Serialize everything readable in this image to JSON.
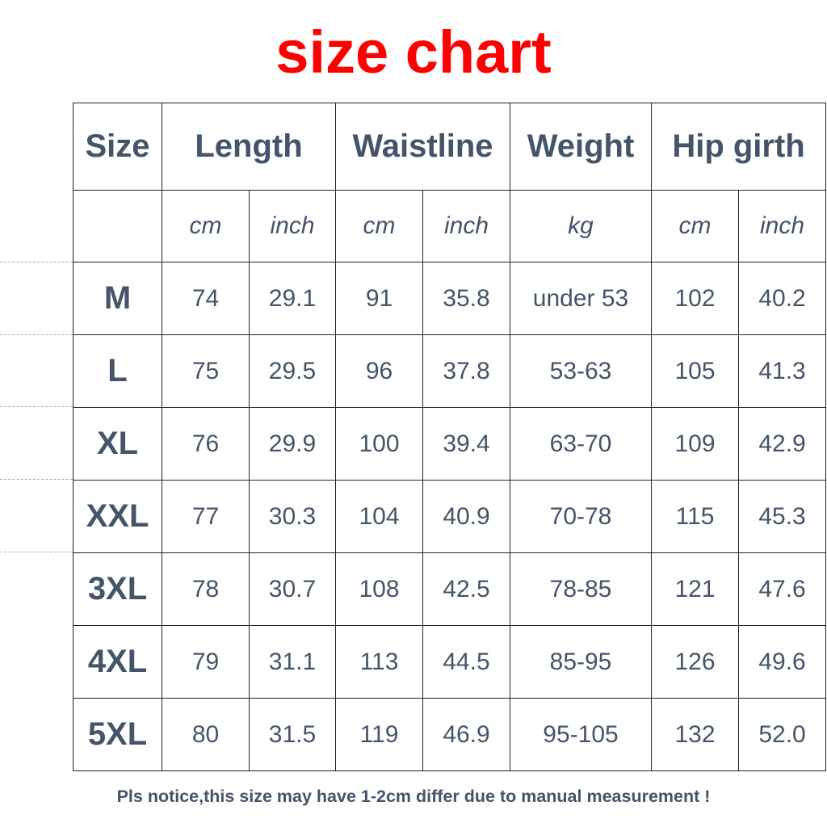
{
  "title": "size chart",
  "headers": [
    "Size",
    "Length",
    "Waistline",
    "Weight",
    "Hip girth"
  ],
  "units": [
    "cm",
    "inch",
    "cm",
    "inch",
    "kg",
    "cm",
    "inch"
  ],
  "rows": [
    [
      "M",
      "74",
      "29.1",
      "91",
      "35.8",
      "under 53",
      "102",
      "40.2"
    ],
    [
      "L",
      "75",
      "29.5",
      "96",
      "37.8",
      "53-63",
      "105",
      "41.3"
    ],
    [
      "XL",
      "76",
      "29.9",
      "100",
      "39.4",
      "63-70",
      "109",
      "42.9"
    ],
    [
      "XXL",
      "77",
      "30.3",
      "104",
      "40.9",
      "70-78",
      "115",
      "45.3"
    ],
    [
      "3XL",
      "78",
      "30.7",
      "108",
      "42.5",
      "78-85",
      "121",
      "47.6"
    ],
    [
      "4XL",
      "79",
      "31.1",
      "113",
      "44.5",
      "85-95",
      "126",
      "49.6"
    ],
    [
      "5XL",
      "80",
      "31.5",
      "119",
      "46.9",
      "95-105",
      "132",
      "52.0"
    ]
  ],
  "footer": "Pls notice,this size may have 1-2cm differ due to manual measurement !",
  "colors": {
    "title": "#ff0000",
    "text": "#44546a"
  }
}
